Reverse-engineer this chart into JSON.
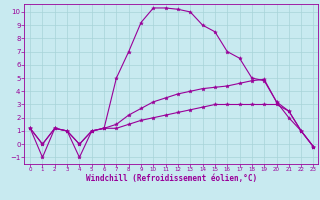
{
  "bg_color": "#c8eaf0",
  "line_color": "#990099",
  "grid_color": "#a8d4d8",
  "xlabel": "Windchill (Refroidissement éolien,°C)",
  "xlim_min": -0.5,
  "xlim_max": 23.4,
  "ylim_min": -1.5,
  "ylim_max": 10.6,
  "xticks": [
    0,
    1,
    2,
    3,
    4,
    5,
    6,
    7,
    8,
    9,
    10,
    11,
    12,
    13,
    14,
    15,
    16,
    17,
    18,
    19,
    20,
    21,
    22,
    23
  ],
  "yticks": [
    -1,
    0,
    1,
    2,
    3,
    4,
    5,
    6,
    7,
    8,
    9,
    10
  ],
  "line1_x": [
    0,
    1,
    2,
    3,
    4,
    5,
    6,
    7,
    8,
    9,
    10,
    11,
    12,
    13,
    14,
    15,
    16,
    17,
    18,
    19,
    20,
    21,
    22,
    23
  ],
  "line1_y": [
    1.2,
    -1.0,
    1.2,
    1.0,
    -1.0,
    1.0,
    1.2,
    5.0,
    7.0,
    9.2,
    10.3,
    10.3,
    10.2,
    10.0,
    9.0,
    8.5,
    7.0,
    6.5,
    5.0,
    4.8,
    3.2,
    2.0,
    1.0,
    -0.2
  ],
  "line2_x": [
    0,
    1,
    2,
    3,
    4,
    5,
    6,
    7,
    8,
    9,
    10,
    11,
    12,
    13,
    14,
    15,
    16,
    17,
    18,
    19,
    20,
    21,
    22,
    23
  ],
  "line2_y": [
    1.2,
    0.0,
    1.2,
    1.0,
    0.0,
    1.0,
    1.2,
    1.5,
    2.2,
    2.7,
    3.2,
    3.5,
    3.8,
    4.0,
    4.2,
    4.3,
    4.4,
    4.6,
    4.8,
    4.9,
    3.2,
    2.5,
    1.0,
    -0.2
  ],
  "line3_x": [
    0,
    1,
    2,
    3,
    4,
    5,
    6,
    7,
    8,
    9,
    10,
    11,
    12,
    13,
    14,
    15,
    16,
    17,
    18,
    19,
    20,
    21,
    22,
    23
  ],
  "line3_y": [
    1.2,
    0.0,
    1.2,
    1.0,
    0.0,
    1.0,
    1.2,
    1.2,
    1.5,
    1.8,
    2.0,
    2.2,
    2.4,
    2.6,
    2.8,
    3.0,
    3.0,
    3.0,
    3.0,
    3.0,
    3.0,
    2.5,
    1.0,
    -0.2
  ],
  "tick_fontsize_x": 4.0,
  "tick_fontsize_y": 5.0,
  "xlabel_fontsize": 5.5,
  "linewidth": 0.8,
  "markersize": 2.8
}
